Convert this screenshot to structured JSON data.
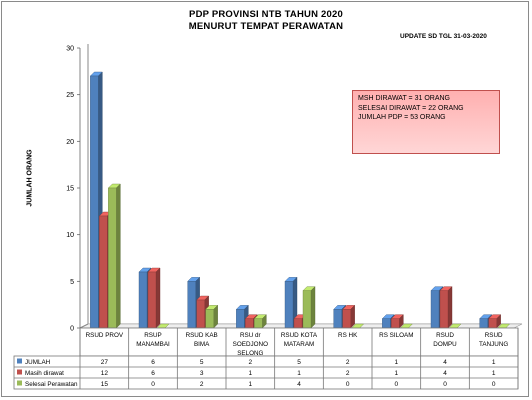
{
  "page": {
    "title_line1": "PDP PROVINSI NTB TAHUN  2020",
    "title_line2": "MENURUT  TEMPAT PERAWATAN",
    "update": "UPDATE  SD TGL 31-03-2020"
  },
  "info_box": {
    "line1": "MSH DIRAWAT = 31 ORANG",
    "line2": "SELESAI DIRAWAT = 22 ORANG",
    "line3": "JUMLAH PDP = 53 ORANG"
  },
  "colors": {
    "jumlah": "#4f81bd",
    "masih": "#c0504d",
    "selesai": "#9bbb59"
  },
  "chart_data": {
    "type": "bar",
    "style": "3d-clustered-column-with-data-table",
    "ylabel": "JUMLAH ORANG",
    "ylim": [
      0,
      30
    ],
    "yticks": [
      0,
      5,
      10,
      15,
      20,
      25,
      30
    ],
    "grid": false,
    "categories": [
      [
        "RSUD PROV"
      ],
      [
        "RSUP",
        "MANAMBAI"
      ],
      [
        "RSUD KAB",
        "BIMA"
      ],
      [
        "RSU dr",
        "SOEDJONO",
        "SELONG"
      ],
      [
        "RSUD KOTA",
        "MATARAM"
      ],
      [
        "RS HK"
      ],
      [
        "RS SILOAM"
      ],
      [
        "RSUD",
        "DOMPU"
      ],
      [
        "RSUD",
        "TANJUNG"
      ]
    ],
    "series": [
      {
        "name": "JUMLAH",
        "values": [
          27,
          6,
          5,
          2,
          5,
          2,
          1,
          4,
          1
        ]
      },
      {
        "name": "Masih dirawat",
        "values": [
          12,
          6,
          3,
          1,
          1,
          2,
          1,
          4,
          1
        ]
      },
      {
        "name": "Selesai Perawatan",
        "values": [
          15,
          0,
          2,
          1,
          4,
          0,
          0,
          0,
          0
        ]
      }
    ]
  }
}
